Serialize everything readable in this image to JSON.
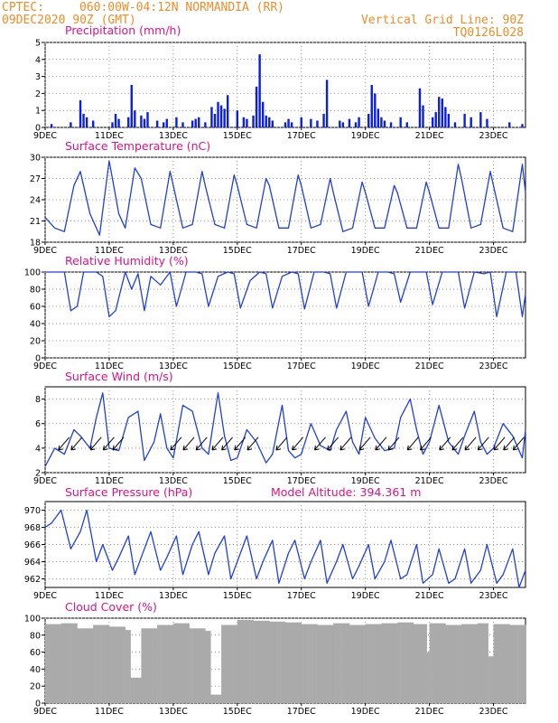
{
  "header": {
    "source": "CPTEC:",
    "location": "060:00W-04:12N  NORMANDIA (RR)",
    "run": "09DEC2020 90Z (GMT)",
    "grid_note": "Vertical Grid Line: 90Z",
    "code": "TQ0126L028"
  },
  "colors": {
    "title": "#e0107f",
    "header": "#f08c28",
    "line": "#1f3fe0",
    "bar": "#0a1ee8",
    "cloud": "#aaaaaa"
  },
  "x_ticks": [
    "9DEC",
    "11DEC",
    "13DEC",
    "15DEC",
    "17DEC",
    "19DEC",
    "21DEC",
    "23DEC"
  ],
  "chart_data": [
    {
      "type": "bar",
      "title": "Precipitation (mm/h)",
      "ylim": [
        0,
        5
      ],
      "yticks": [
        0,
        1,
        2,
        3,
        4,
        5
      ],
      "x_range_days": [
        9,
        24
      ],
      "x": [
        9.2,
        9.8,
        10.1,
        10.2,
        10.3,
        10.5,
        11.1,
        11.2,
        11.3,
        11.6,
        11.7,
        11.8,
        12.0,
        12.1,
        12.2,
        12.5,
        12.7,
        12.8,
        13.1,
        13.3,
        13.6,
        13.7,
        13.8,
        14.0,
        14.2,
        14.3,
        14.4,
        14.5,
        14.6,
        14.7,
        15.0,
        15.2,
        15.3,
        15.5,
        15.6,
        15.7,
        15.8,
        15.9,
        16.0,
        16.1,
        16.5,
        16.6,
        16.7,
        17.0,
        17.3,
        17.5,
        17.7,
        17.8,
        18.2,
        18.3,
        18.5,
        18.7,
        18.8,
        19.1,
        19.2,
        19.3,
        19.4,
        19.5,
        19.6,
        19.8,
        20.1,
        20.3,
        20.7,
        20.8,
        21.1,
        21.2,
        21.3,
        21.4,
        21.5,
        21.6,
        21.8,
        22.1,
        22.3,
        22.6,
        22.8,
        23.5,
        23.9
      ],
      "values": [
        0.2,
        0.3,
        1.6,
        0.8,
        0.6,
        0.4,
        0.3,
        0.8,
        0.5,
        0.6,
        2.5,
        1.0,
        0.7,
        0.5,
        0.9,
        0.4,
        0.3,
        0.5,
        0.6,
        0.3,
        0.4,
        0.5,
        0.6,
        0.3,
        1.2,
        0.8,
        1.5,
        1.3,
        1.1,
        1.9,
        1.0,
        0.6,
        0.5,
        0.7,
        2.4,
        4.3,
        1.5,
        0.7,
        0.6,
        0.4,
        0.3,
        0.5,
        0.3,
        0.6,
        0.5,
        0.4,
        0.8,
        2.8,
        0.4,
        0.3,
        0.5,
        0.3,
        0.6,
        0.8,
        2.5,
        2.0,
        1.1,
        0.6,
        0.4,
        0.3,
        0.6,
        0.3,
        2.3,
        1.3,
        0.6,
        0.9,
        1.8,
        1.7,
        1.2,
        0.8,
        0.3,
        0.8,
        0.6,
        0.9,
        0.5,
        0.3,
        0.2
      ]
    },
    {
      "type": "line",
      "title": "Surface Temperature (nC)",
      "ylim": [
        18,
        30
      ],
      "yticks": [
        18,
        21,
        24,
        27,
        30
      ],
      "x_range_days": [
        9,
        24
      ],
      "x": [
        9.0,
        9.3,
        9.6,
        9.9,
        10.1,
        10.4,
        10.7,
        11.0,
        11.3,
        11.5,
        11.8,
        12.0,
        12.3,
        12.6,
        12.9,
        13.0,
        13.3,
        13.6,
        13.9,
        14.0,
        14.3,
        14.6,
        14.9,
        15.0,
        15.3,
        15.6,
        15.9,
        16.0,
        16.3,
        16.6,
        16.9,
        17.0,
        17.3,
        17.6,
        17.9,
        18.0,
        18.3,
        18.6,
        18.9,
        19.0,
        19.3,
        19.6,
        19.9,
        20.0,
        20.3,
        20.6,
        20.9,
        21.0,
        21.3,
        21.6,
        21.9,
        22.0,
        22.3,
        22.6,
        22.9,
        23.0,
        23.3,
        23.6,
        23.9,
        24.0
      ],
      "y": [
        21.5,
        20,
        19.5,
        26,
        28,
        22,
        19,
        29.5,
        22,
        20,
        28.5,
        27,
        20.5,
        20,
        28,
        26,
        20,
        20.5,
        28,
        26,
        20.5,
        20,
        27.5,
        26,
        20.5,
        20,
        27,
        26,
        20,
        20,
        27.5,
        26,
        20,
        20.5,
        27,
        25,
        19.5,
        20,
        26.5,
        25,
        20,
        20,
        26,
        25,
        20,
        20,
        26.5,
        25,
        20,
        20,
        29,
        27,
        20,
        20.5,
        28,
        26,
        20,
        19.5,
        29,
        25
      ]
    },
    {
      "type": "line",
      "title": "Relative Humidity (%)",
      "ylim": [
        0,
        100
      ],
      "yticks": [
        0,
        20,
        40,
        60,
        80,
        100
      ],
      "x_range_days": [
        9,
        24
      ],
      "x": [
        9.0,
        9.3,
        9.6,
        9.8,
        10.0,
        10.2,
        10.4,
        10.6,
        10.8,
        11.0,
        11.2,
        11.5,
        11.7,
        11.9,
        12.1,
        12.3,
        12.6,
        12.9,
        13.1,
        13.4,
        13.7,
        13.9,
        14.1,
        14.4,
        14.7,
        14.9,
        15.1,
        15.4,
        15.7,
        15.9,
        16.1,
        16.4,
        16.7,
        16.9,
        17.1,
        17.4,
        17.7,
        17.9,
        18.1,
        18.4,
        18.7,
        18.9,
        19.1,
        19.4,
        19.7,
        19.9,
        20.1,
        20.4,
        20.7,
        20.9,
        21.1,
        21.4,
        21.7,
        21.9,
        22.1,
        22.4,
        22.7,
        22.9,
        23.1,
        23.4,
        23.7,
        23.9,
        24.0
      ],
      "y": [
        100,
        100,
        100,
        55,
        60,
        100,
        100,
        100,
        95,
        48,
        55,
        100,
        80,
        98,
        55,
        95,
        85,
        100,
        60,
        100,
        100,
        98,
        60,
        95,
        100,
        98,
        58,
        90,
        100,
        98,
        58,
        95,
        100,
        98,
        57,
        100,
        100,
        98,
        58,
        100,
        100,
        100,
        60,
        100,
        100,
        98,
        65,
        100,
        100,
        100,
        62,
        100,
        100,
        100,
        58,
        100,
        98,
        100,
        48,
        100,
        100,
        48,
        75
      ]
    },
    {
      "type": "line",
      "title": "Surface Wind (m/s)",
      "ylim": [
        2,
        9
      ],
      "yticks": [
        2,
        4,
        6,
        8
      ],
      "x_range_days": [
        9,
        24
      ],
      "x": [
        9.0,
        9.3,
        9.6,
        9.9,
        10.1,
        10.4,
        10.6,
        10.8,
        11.0,
        11.3,
        11.6,
        11.9,
        12.1,
        12.4,
        12.6,
        12.8,
        13.0,
        13.3,
        13.6,
        13.9,
        14.1,
        14.4,
        14.6,
        14.8,
        15.0,
        15.3,
        15.6,
        15.9,
        16.1,
        16.4,
        16.6,
        16.8,
        17.0,
        17.3,
        17.6,
        17.9,
        18.1,
        18.4,
        18.6,
        18.8,
        19.0,
        19.3,
        19.6,
        19.9,
        20.1,
        20.4,
        20.6,
        20.8,
        21.0,
        21.3,
        21.6,
        21.9,
        22.1,
        22.4,
        22.6,
        22.8,
        23.0,
        23.3,
        23.6,
        23.9,
        24.0
      ],
      "y": [
        2.5,
        4.0,
        3.5,
        5.5,
        5.0,
        4.0,
        6.5,
        8.5,
        4.0,
        3.8,
        6.5,
        7.0,
        3.0,
        4.5,
        6.8,
        4.0,
        3.2,
        7.5,
        7.0,
        4.0,
        3.5,
        8.5,
        5.0,
        3.0,
        3.2,
        5.5,
        4.5,
        2.8,
        3.5,
        7.5,
        3.8,
        3.2,
        3.5,
        6.0,
        4.2,
        3.8,
        5.5,
        7.0,
        4.5,
        3.5,
        6.5,
        4.8,
        3.8,
        4.0,
        6.5,
        8.0,
        5.5,
        3.5,
        4.5,
        7.5,
        4.5,
        3.5,
        5.0,
        7.0,
        4.5,
        3.5,
        4.0,
        6.0,
        5.0,
        3.2,
        5.5
      ],
      "arrows_x": [
        9.5,
        9.9,
        10.5,
        10.9,
        11.2,
        13.0,
        13.4,
        13.8,
        14.3,
        14.6,
        15.0,
        15.4,
        16.3,
        16.8,
        17.5,
        17.9,
        18.3,
        18.9,
        19.4,
        19.8,
        20.4,
        20.8,
        21.4,
        21.8,
        22.2,
        22.6,
        23.1,
        23.4,
        23.7
      ]
    },
    {
      "type": "line",
      "title": "Surface Pressure (hPa)",
      "subtitle": "Model Altitude: 394.361 m",
      "ylim": [
        961,
        971
      ],
      "yticks": [
        962,
        964,
        966,
        968,
        970
      ],
      "x_range_days": [
        9,
        24
      ],
      "x": [
        9.0,
        9.2,
        9.5,
        9.8,
        10.1,
        10.3,
        10.6,
        10.8,
        11.1,
        11.3,
        11.6,
        11.8,
        12.1,
        12.3,
        12.6,
        12.8,
        13.1,
        13.3,
        13.6,
        13.8,
        14.1,
        14.3,
        14.6,
        14.8,
        15.1,
        15.3,
        15.6,
        15.8,
        16.1,
        16.3,
        16.6,
        16.8,
        17.1,
        17.3,
        17.6,
        17.8,
        18.1,
        18.3,
        18.6,
        18.8,
        19.1,
        19.3,
        19.6,
        19.8,
        20.1,
        20.3,
        20.6,
        20.8,
        21.1,
        21.3,
        21.6,
        21.8,
        22.1,
        22.3,
        22.6,
        22.8,
        23.1,
        23.3,
        23.6,
        23.8,
        24.0
      ],
      "y": [
        968,
        968.5,
        970,
        965.5,
        967.5,
        970,
        964,
        966,
        963,
        964.5,
        967,
        962.5,
        965.5,
        967.5,
        963,
        964.5,
        967,
        962.5,
        966,
        967.5,
        962.5,
        965,
        967,
        962,
        965,
        967,
        962,
        964,
        966.5,
        961.5,
        965,
        966.5,
        962,
        964,
        966.5,
        961.5,
        964,
        966,
        962,
        963.5,
        966,
        962,
        964,
        966.5,
        962,
        962.5,
        966,
        961.5,
        962.5,
        965.5,
        961.5,
        962,
        965.5,
        961.5,
        963,
        966,
        961.5,
        962.5,
        965.5,
        961,
        963
      ]
    },
    {
      "type": "bar",
      "title": "Cloud Cover (%)",
      "ylim": [
        0,
        100
      ],
      "yticks": [
        0,
        20,
        40,
        60,
        80,
        100
      ],
      "x_range_days": [
        9,
        24
      ],
      "x": [
        9.0,
        9.5,
        10.0,
        10.5,
        11.0,
        11.5,
        11.7,
        12.0,
        12.5,
        13.0,
        13.5,
        14.0,
        14.2,
        14.5,
        15.0,
        15.5,
        16.0,
        16.5,
        17.0,
        17.5,
        18.0,
        18.5,
        19.0,
        19.5,
        20.0,
        20.5,
        20.9,
        21.0,
        21.5,
        22.0,
        22.5,
        22.8,
        23.0,
        23.5,
        24.0
      ],
      "values": [
        93,
        94,
        88,
        92,
        90,
        86,
        30,
        88,
        92,
        94,
        88,
        85,
        10,
        92,
        98,
        97,
        96,
        95,
        93,
        92,
        94,
        92,
        93,
        94,
        95,
        93,
        60,
        94,
        92,
        93,
        94,
        55,
        93,
        92,
        94
      ]
    }
  ]
}
